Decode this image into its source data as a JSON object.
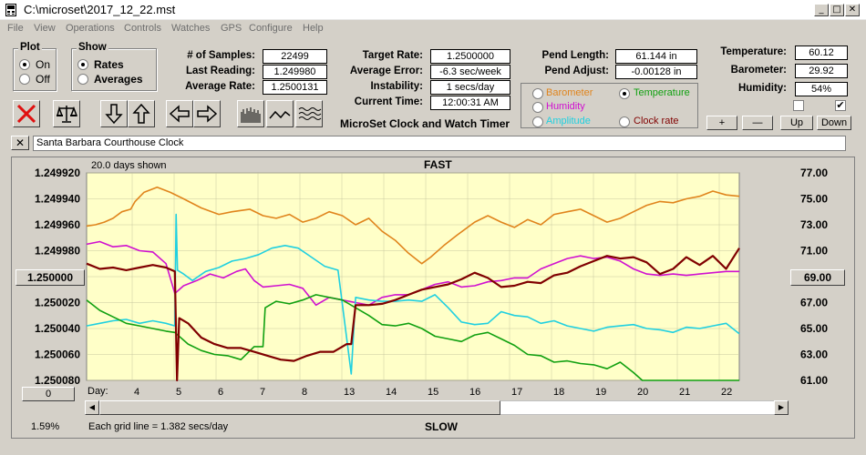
{
  "window": {
    "title": "C:\\microset\\2017_12_22.mst"
  },
  "menu": [
    "File",
    "View",
    "Operations",
    "Controls",
    "Watches",
    "GPS",
    "Configure",
    "Help"
  ],
  "plot_group": {
    "title": "Plot",
    "options": [
      "On",
      "Off"
    ],
    "selected": "On"
  },
  "show_group": {
    "title": "Show",
    "options": [
      "Rates",
      "Averages"
    ],
    "selected": "Rates"
  },
  "stats": {
    "samples_label": "# of Samples:",
    "samples": "22499",
    "last_reading_label": "Last Reading:",
    "last_reading": "1.249980",
    "average_rate_label": "Average Rate:",
    "average_rate": "1.2500131",
    "target_rate_label": "Target Rate:",
    "target_rate": "1.2500000",
    "average_error_label": "Average Error:",
    "average_error": "-6.3 sec/week",
    "instability_label": "Instability:",
    "instability": "1 secs/day",
    "current_time_label": "Current Time:",
    "current_time": "12:00:31 AM",
    "pend_length_label": "Pend Length:",
    "pend_length": "61.144 in",
    "pend_adjust_label": "Pend Adjust:",
    "pend_adjust": "-0.00128 in",
    "temperature_label": "Temperature:",
    "temperature": "60.12",
    "barometer_label": "Barometer:",
    "barometer": "29.92",
    "humidity_label": "Humidity:",
    "humidity": "54%"
  },
  "app_caption": "MicroSet Clock and Watch Timer",
  "sensor_options": [
    {
      "label": "Barometer",
      "color": "#e0841c",
      "selected": false
    },
    {
      "label": "Temperature",
      "color": "#10a010",
      "selected": true
    },
    {
      "label": "Humidity",
      "color": "#d010d0",
      "selected": false
    },
    {
      "label": "Clock rate",
      "color": "#800000",
      "selected": false
    },
    {
      "label": "Amplitude",
      "color": "#20d0e0",
      "selected": false
    }
  ],
  "adjust_buttons": [
    "+",
    "—",
    "Up",
    "Down"
  ],
  "checkbox_right_checked": true,
  "clock_name": "Santa Barbara Courthouse Clock",
  "plot": {
    "days_shown": "20.0 days shown",
    "top_label": "FAST",
    "bottom_label": "SLOW",
    "grid_note": "Each grid line = 1.382 secs/day",
    "left_button": "1.250000",
    "right_button": "69.00",
    "bottom_left_button": "0",
    "percent": "1.59%",
    "day_label": "Day:"
  },
  "chart_data": {
    "type": "line",
    "left_axis": {
      "ticks": [
        "1.249920",
        "1.249940",
        "1.249960",
        "1.249980",
        "1.250000",
        "1.250020",
        "1.250040",
        "1.250060",
        "1.250080"
      ],
      "ylim": [
        1.25008,
        1.24992
      ]
    },
    "right_axis": {
      "ticks": [
        "77.00",
        "75.00",
        "73.00",
        "71.00",
        "69.00",
        "67.00",
        "65.00",
        "63.00",
        "61.00"
      ],
      "ylim": [
        61,
        77
      ]
    },
    "x_ticks": [
      "4",
      "5",
      "6",
      "7",
      "8",
      "13",
      "14",
      "15",
      "16",
      "17",
      "18",
      "19",
      "20",
      "21",
      "22"
    ],
    "series": [
      {
        "color": "#e0841c",
        "axis": "left",
        "x": [
          0,
          0.2,
          0.4,
          0.6,
          0.8,
          1.0,
          1.1,
          1.3,
          1.6,
          1.9,
          2.2,
          2.6,
          3.0,
          3.3,
          3.7,
          4.0,
          4.3,
          4.6,
          4.9,
          5.2,
          5.5,
          5.8,
          6.1,
          6.4,
          6.7,
          7.0,
          7.3,
          7.6,
          7.8,
          8.1,
          8.4,
          8.8,
          9.1,
          9.4,
          9.7,
          10.0,
          10.3,
          10.6,
          10.9,
          11.2,
          11.5,
          11.8,
          12.1,
          12.4,
          12.7,
          13.0,
          13.3,
          13.6,
          13.9,
          14.2,
          14.5,
          14.8
        ],
        "y": [
          1.249961,
          1.24996,
          1.249958,
          1.249955,
          1.24995,
          1.249948,
          1.249942,
          1.249935,
          1.249931,
          1.249935,
          1.24994,
          1.249947,
          1.249952,
          1.24995,
          1.249948,
          1.249953,
          1.249955,
          1.249952,
          1.249958,
          1.249955,
          1.24995,
          1.249953,
          1.24996,
          1.249955,
          1.249965,
          1.249972,
          1.249982,
          1.24999,
          1.249985,
          1.249976,
          1.249968,
          1.249958,
          1.249953,
          1.249958,
          1.249962,
          1.249956,
          1.24996,
          1.249952,
          1.24995,
          1.249948,
          1.249953,
          1.249958,
          1.249955,
          1.24995,
          1.249945,
          1.249942,
          1.249943,
          1.24994,
          1.249938,
          1.249934,
          1.249937,
          1.249938
        ]
      },
      {
        "color": "#d010d0",
        "axis": "left",
        "x": [
          0,
          0.3,
          0.6,
          0.9,
          1.2,
          1.5,
          1.8,
          2.0,
          2.2,
          2.5,
          2.8,
          3.1,
          3.4,
          3.6,
          3.8,
          4.0,
          4.3,
          4.6,
          4.9,
          5.2,
          5.5,
          5.8,
          6.1,
          6.4,
          6.7,
          7.0,
          7.3,
          7.6,
          7.9,
          8.2,
          8.5,
          8.8,
          9.1,
          9.4,
          9.7,
          10.0,
          10.3,
          10.6,
          10.9,
          11.2,
          11.5,
          11.8,
          12.1,
          12.4,
          12.7,
          13.0,
          13.3,
          13.6,
          13.9,
          14.2,
          14.5,
          14.8
        ],
        "y": [
          1.249975,
          1.249973,
          1.249977,
          1.249976,
          1.24998,
          1.249981,
          1.24999,
          1.250013,
          1.250007,
          1.250003,
          1.249998,
          1.250001,
          1.249996,
          1.249994,
          1.250003,
          1.250008,
          1.250007,
          1.250006,
          1.250009,
          1.250022,
          1.250016,
          1.250018,
          1.25002,
          1.250022,
          1.250016,
          1.250014,
          1.250014,
          1.25001,
          1.250006,
          1.250004,
          1.250008,
          1.250007,
          1.250004,
          1.250003,
          1.250001,
          1.250001,
          1.249994,
          1.24999,
          1.249986,
          1.249984,
          1.249986,
          1.249985,
          1.249988,
          1.249994,
          1.249998,
          1.249999,
          1.249998,
          1.249999,
          1.249998,
          1.249997,
          1.249996,
          1.249996
        ]
      },
      {
        "color": "#20d0e0",
        "axis": "left",
        "x": [
          0,
          0.3,
          0.6,
          0.9,
          1.2,
          1.5,
          1.8,
          2.0,
          2.03,
          2.06,
          2.2,
          2.4,
          2.7,
          3.0,
          3.3,
          3.6,
          3.9,
          4.2,
          4.5,
          4.8,
          5.1,
          5.4,
          5.7,
          6.0,
          6.1,
          6.4,
          6.7,
          7.0,
          7.3,
          7.6,
          7.9,
          8.2,
          8.5,
          8.8,
          9.1,
          9.4,
          9.7,
          10.0,
          10.3,
          10.6,
          10.9,
          11.2,
          11.5,
          11.8,
          12.1,
          12.4,
          12.7,
          13.0,
          13.3,
          13.6,
          13.9,
          14.2,
          14.5,
          14.8
        ],
        "y": [
          1.250038,
          1.250036,
          1.250034,
          1.250033,
          1.250036,
          1.250034,
          1.250036,
          1.250038,
          1.249952,
          1.249995,
          1.249998,
          1.250003,
          1.249996,
          1.249993,
          1.249988,
          1.249986,
          1.249983,
          1.249978,
          1.249976,
          1.249978,
          1.249985,
          1.249992,
          1.249995,
          1.250075,
          1.250016,
          1.250018,
          1.250019,
          1.250019,
          1.250018,
          1.250019,
          1.250014,
          1.250024,
          1.250035,
          1.250037,
          1.250036,
          1.250027,
          1.25003,
          1.250031,
          1.250036,
          1.250034,
          1.250038,
          1.25004,
          1.250042,
          1.250039,
          1.250038,
          1.250037,
          1.25004,
          1.250041,
          1.250043,
          1.250039,
          1.25004,
          1.250038,
          1.250036,
          1.250044
        ]
      },
      {
        "color": "#10a010",
        "axis": "left",
        "x": [
          0,
          0.3,
          0.6,
          0.9,
          1.2,
          1.5,
          1.8,
          2.0,
          2.3,
          2.6,
          2.9,
          3.2,
          3.5,
          3.8,
          4.0,
          4.05,
          4.3,
          4.6,
          4.9,
          5.2,
          5.5,
          5.8,
          6.1,
          6.4,
          6.7,
          7.0,
          7.3,
          7.6,
          7.9,
          8.2,
          8.5,
          8.8,
          9.1,
          9.4,
          9.7,
          10.0,
          10.3,
          10.6,
          10.9,
          11.2,
          11.5,
          11.8,
          12.1,
          12.4,
          12.6,
          12.8,
          13.0,
          13.3,
          13.6,
          13.9,
          14.2,
          14.5,
          14.8
        ],
        "y": [
          1.250018,
          1.250026,
          1.250031,
          1.250036,
          1.250038,
          1.25004,
          1.250042,
          1.250043,
          1.250052,
          1.250057,
          1.25006,
          1.250061,
          1.250064,
          1.250054,
          1.250054,
          1.250024,
          1.250019,
          1.250021,
          1.250018,
          1.250014,
          1.250016,
          1.250018,
          1.250024,
          1.25003,
          1.250037,
          1.250038,
          1.250036,
          1.25004,
          1.250046,
          1.250048,
          1.25005,
          1.250045,
          1.250043,
          1.250048,
          1.250053,
          1.25006,
          1.250061,
          1.250066,
          1.250065,
          1.250067,
          1.250068,
          1.250071,
          1.250066,
          1.250074,
          1.25008,
          1.25008,
          1.25008,
          1.25008,
          1.25008,
          1.25008,
          1.25008,
          1.25008,
          1.25008
        ]
      },
      {
        "color": "#800000",
        "axis": "left",
        "x": [
          0,
          0.3,
          0.6,
          0.9,
          1.2,
          1.5,
          1.8,
          2.0,
          2.05,
          2.1,
          2.3,
          2.6,
          2.9,
          3.2,
          3.5,
          3.8,
          4.1,
          4.4,
          4.7,
          5.0,
          5.3,
          5.6,
          5.9,
          6.0,
          6.1,
          6.4,
          6.7,
          7.0,
          7.3,
          7.6,
          7.9,
          8.2,
          8.5,
          8.8,
          9.1,
          9.4,
          9.7,
          10.0,
          10.3,
          10.6,
          10.9,
          11.2,
          11.5,
          11.8,
          12.1,
          12.4,
          12.7,
          13.0,
          13.3,
          13.6,
          13.9,
          14.2,
          14.5,
          14.8
        ],
        "y": [
          1.24999,
          1.249994,
          1.249993,
          1.249995,
          1.249993,
          1.249991,
          1.249993,
          1.249996,
          1.25008,
          1.250032,
          1.250036,
          1.250047,
          1.250052,
          1.250055,
          1.250055,
          1.250058,
          1.250061,
          1.250064,
          1.250065,
          1.250061,
          1.250058,
          1.250058,
          1.250052,
          1.250052,
          1.250022,
          1.250022,
          1.250021,
          1.250018,
          1.250014,
          1.25001,
          1.250008,
          1.250006,
          1.250002,
          1.249997,
          1.250001,
          1.250008,
          1.250007,
          1.250004,
          1.250005,
          1.249999,
          1.249997,
          1.249992,
          1.249988,
          1.249984,
          1.249986,
          1.249985,
          1.249989,
          1.249998,
          1.249994,
          1.249985,
          1.249991,
          1.249984,
          1.249994,
          1.249978
        ]
      }
    ]
  }
}
